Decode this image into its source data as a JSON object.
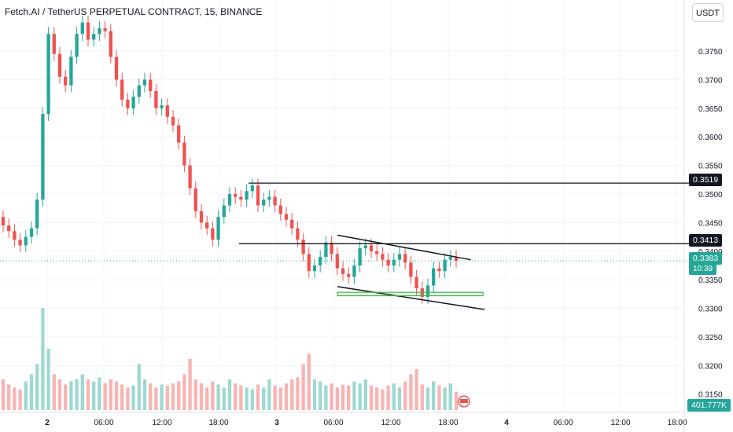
{
  "header": {
    "title": "Fetch.AI / TetherUS PERPETUAL CONTRACT, 15, BINANCE",
    "currency": "USDT"
  },
  "tags": {
    "resistance": "0.3519",
    "support_level": "0.3413",
    "last_price": "0.3383",
    "countdown": "10:39",
    "volume": "401.777K"
  },
  "chart_data": {
    "type": "candlestick",
    "symbol": "Fetch.AI / TetherUS PERPETUAL CONTRACT",
    "interval": "15",
    "exchange": "BINANCE",
    "y_ticks": [
      "0.3750",
      "0.3700",
      "0.3650",
      "0.3600",
      "0.3550",
      "0.3500",
      "0.3450",
      "0.3400",
      "0.3350",
      "0.3300",
      "0.3250",
      "0.3200",
      "0.3150"
    ],
    "ylim": [
      0.3118,
      0.3805
    ],
    "x_ticks": [
      "2",
      "06:00",
      "12:00",
      "18:00",
      "3",
      "06:00",
      "12:00",
      "18:00",
      "4",
      "06:00",
      "12:00",
      "18:00"
    ],
    "closes": [
      0.3445,
      0.3435,
      0.342,
      0.341,
      0.3425,
      0.344,
      0.349,
      0.364,
      0.378,
      0.3745,
      0.3705,
      0.369,
      0.374,
      0.378,
      0.38,
      0.377,
      0.378,
      0.379,
      0.3785,
      0.374,
      0.37,
      0.3665,
      0.365,
      0.367,
      0.369,
      0.37,
      0.368,
      0.365,
      0.3655,
      0.3635,
      0.362,
      0.359,
      0.355,
      0.351,
      0.347,
      0.345,
      0.344,
      0.342,
      0.346,
      0.348,
      0.35,
      0.3495,
      0.349,
      0.3505,
      0.3515,
      0.348,
      0.349,
      0.3495,
      0.348,
      0.3465,
      0.3455,
      0.344,
      0.342,
      0.3395,
      0.3365,
      0.3375,
      0.339,
      0.3415,
      0.3395,
      0.337,
      0.336,
      0.3355,
      0.3375,
      0.3405,
      0.341,
      0.34,
      0.3395,
      0.3385,
      0.3375,
      0.3385,
      0.3395,
      0.338,
      0.3355,
      0.3335,
      0.332,
      0.334,
      0.337,
      0.3365,
      0.3385,
      0.339,
      0.3383
    ],
    "volumes": [
      0.3,
      0.25,
      0.22,
      0.2,
      0.28,
      0.35,
      0.45,
      1.0,
      0.6,
      0.35,
      0.3,
      0.25,
      0.28,
      0.3,
      0.35,
      0.3,
      0.28,
      0.32,
      0.26,
      0.3,
      0.28,
      0.25,
      0.22,
      0.24,
      0.45,
      0.3,
      0.26,
      0.22,
      0.25,
      0.24,
      0.26,
      0.28,
      0.35,
      0.5,
      0.3,
      0.26,
      0.22,
      0.28,
      0.25,
      0.22,
      0.3,
      0.26,
      0.24,
      0.22,
      0.2,
      0.25,
      0.22,
      0.3,
      0.24,
      0.22,
      0.26,
      0.3,
      0.32,
      0.45,
      0.55,
      0.3,
      0.28,
      0.24,
      0.26,
      0.22,
      0.25,
      0.24,
      0.28,
      0.26,
      0.3,
      0.24,
      0.22,
      0.2,
      0.24,
      0.26,
      0.22,
      0.28,
      0.35,
      0.4,
      0.25,
      0.22,
      0.28,
      0.24,
      0.22,
      0.26,
      0.18
    ],
    "annotations": [
      {
        "kind": "horizontal_line",
        "price": 0.3519,
        "label": "0.3519"
      },
      {
        "kind": "horizontal_line",
        "price": 0.3413,
        "label": "0.3413"
      },
      {
        "kind": "trendline",
        "from": [
          0.53,
          0.3428
        ],
        "to": [
          0.725,
          0.3385
        ]
      },
      {
        "kind": "trendline",
        "from": [
          0.53,
          0.3338
        ],
        "to": [
          0.745,
          0.3298
        ]
      },
      {
        "kind": "rectangle",
        "price_top": 0.3328,
        "price_bottom": 0.3322,
        "x_from": 0.53,
        "x_to": 0.76
      }
    ]
  },
  "colors": {
    "up": "#26a69a",
    "down": "#ef5350",
    "grid": "#f0f3fa",
    "text": "#131722",
    "support_zone": "#4caf50",
    "volume_up": "#9ed8d2",
    "volume_down": "#f7b4b3"
  }
}
